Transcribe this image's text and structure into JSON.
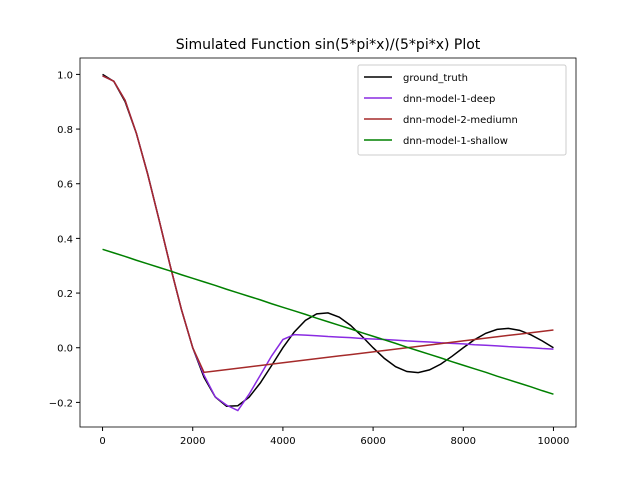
{
  "chart_data": {
    "type": "line",
    "title": "Simulated Function sin(5*pi*x)/(5*pi*x) Plot",
    "x": [
      0,
      250,
      500,
      750,
      1000,
      1250,
      1500,
      1750,
      2000,
      2250,
      2500,
      2750,
      3000,
      3250,
      3500,
      3750,
      4000,
      4250,
      4500,
      4750,
      5000,
      5250,
      5500,
      5750,
      6000,
      6250,
      6500,
      6750,
      7000,
      7250,
      7500,
      7750,
      8000,
      8250,
      8500,
      8750,
      9000,
      9250,
      9500,
      9750,
      10000
    ],
    "series": [
      {
        "name": "ground_truth",
        "color": "#000000",
        "values": [
          1,
          0.9745,
          0.9003,
          0.7842,
          0.6366,
          0.4705,
          0.3001,
          0.1392,
          0,
          -0.1083,
          -0.1801,
          -0.2139,
          -0.2122,
          -0.181,
          -0.1286,
          -0.065,
          0,
          0.0573,
          0.1,
          0.1238,
          0.1273,
          0.112,
          0.0818,
          0.0424,
          0,
          -0.039,
          -0.0693,
          -0.0871,
          -0.0909,
          -0.0811,
          -0.06,
          -0.0314,
          0,
          0.0295,
          0.053,
          0.0672,
          0.0707,
          0.0636,
          0.0474,
          0.025,
          0
        ]
      },
      {
        "name": "dnn-model-1-deep",
        "color": "#8a2be2",
        "values": [
          0.995,
          0.975,
          0.905,
          0.785,
          0.635,
          0.47,
          0.3,
          0.14,
          0,
          -0.1,
          -0.18,
          -0.21,
          -0.23,
          -0.17,
          -0.1,
          -0.03,
          0.03,
          0.048,
          0.046,
          0.044,
          0.041,
          0.039,
          0.037,
          0.034,
          0.032,
          0.03,
          0.028,
          0.025,
          0.023,
          0.021,
          0.018,
          0.016,
          0.014,
          0.011,
          0.009,
          0.007,
          0.004,
          0.002,
          0,
          -0.003,
          -0.005
        ]
      },
      {
        "name": "dnn-model-2-mediumn",
        "color": "#a52a2a",
        "values": [
          0.995,
          0.975,
          0.905,
          0.785,
          0.635,
          0.47,
          0.3,
          0.14,
          0,
          -0.09,
          -0.085,
          -0.08,
          -0.075,
          -0.07,
          -0.065,
          -0.06,
          -0.055,
          -0.05,
          -0.045,
          -0.04,
          -0.035,
          -0.03,
          -0.025,
          -0.02,
          -0.015,
          -0.01,
          -0.005,
          0,
          0.005,
          0.01,
          0.015,
          0.02,
          0.025,
          0.03,
          0.035,
          0.04,
          0.045,
          0.05,
          0.055,
          0.06,
          0.065
        ]
      },
      {
        "name": "dnn-model-1-shallow",
        "color": "#008000",
        "values": [
          0.36,
          0.347,
          0.334,
          0.32,
          0.307,
          0.294,
          0.281,
          0.267,
          0.254,
          0.241,
          0.228,
          0.214,
          0.201,
          0.188,
          0.175,
          0.161,
          0.148,
          0.135,
          0.122,
          0.108,
          0.095,
          0.082,
          0.069,
          0.055,
          0.042,
          0.029,
          0.016,
          0.002,
          -0.011,
          -0.024,
          -0.037,
          -0.051,
          -0.064,
          -0.077,
          -0.09,
          -0.104,
          -0.117,
          -0.13,
          -0.143,
          -0.157,
          -0.17
        ]
      }
    ],
    "xlim": [
      -500,
      10500
    ],
    "ylim": [
      -0.29,
      1.06
    ],
    "xticks": [
      0,
      2000,
      4000,
      6000,
      8000,
      10000
    ],
    "yticks": [
      {
        "value": -0.2,
        "label": "−0.2"
      },
      {
        "value": 0,
        "label": "0.0"
      },
      0.2,
      0.4,
      0.6,
      0.8,
      {
        "value": 1,
        "label": "1.0"
      }
    ],
    "legend": "upper right"
  }
}
